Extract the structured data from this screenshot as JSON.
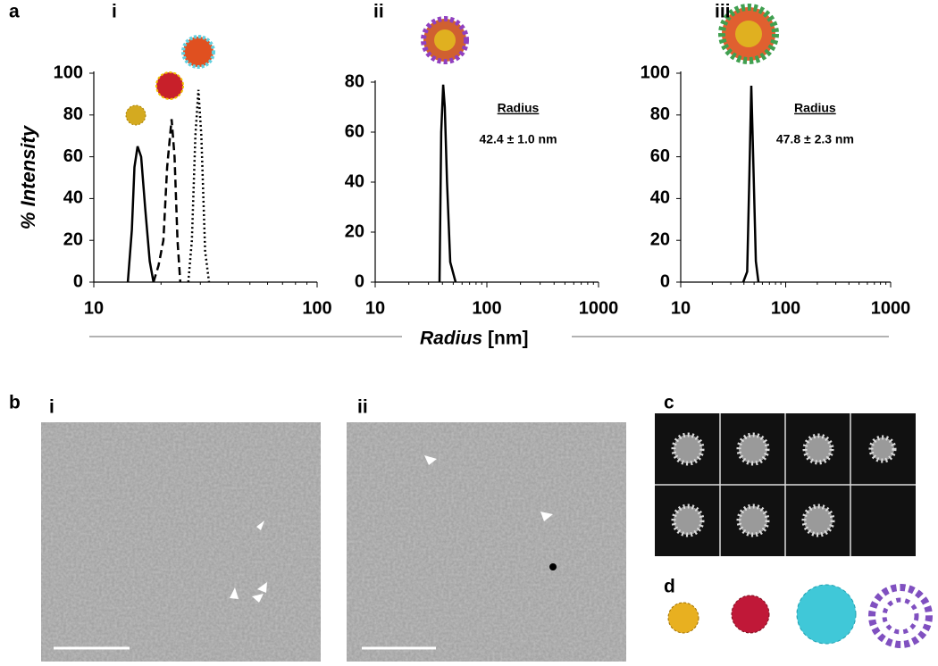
{
  "chart_data": [
    {
      "type": "line",
      "title": "i",
      "ylabel": "% Intensity",
      "xscale": "log",
      "xlim": [
        10,
        100
      ],
      "xticks": [
        10,
        100
      ],
      "ylim": [
        0,
        100
      ],
      "yticks": [
        0,
        20,
        40,
        60,
        80,
        100
      ],
      "series": [
        {
          "color": "#000000",
          "dash": "solid",
          "x": [
            14.2,
            14.8,
            15.2,
            15.7,
            16.3,
            17,
            17.8,
            18.5
          ],
          "values": [
            0,
            25,
            55,
            65,
            60,
            35,
            10,
            0
          ]
        },
        {
          "color": "#000000",
          "dash": "dashed",
          "x": [
            18.5,
            19.5,
            20.5,
            21.3,
            22.3,
            23,
            23.7,
            24.4
          ],
          "values": [
            0,
            8,
            20,
            55,
            78,
            60,
            20,
            0
          ]
        },
        {
          "color": "#000000",
          "dash": "dotted",
          "x": [
            26.5,
            27.5,
            28.5,
            29.4,
            30.3,
            31.5,
            32.8
          ],
          "values": [
            0,
            20,
            70,
            92,
            70,
            15,
            0
          ]
        }
      ]
    },
    {
      "type": "line",
      "title": "ii",
      "xscale": "log",
      "xlim": [
        10,
        1000
      ],
      "xticks": [
        10,
        100,
        1000
      ],
      "ylim": [
        0,
        80
      ],
      "yticks": [
        0,
        20,
        40,
        60,
        80
      ],
      "annotation": {
        "heading": "Radius",
        "text": "42.4 ± 1.0 nm"
      },
      "series": [
        {
          "color": "#000000",
          "dash": "solid",
          "x": [
            37.7,
            39,
            40.6,
            42,
            44,
            47,
            52.5
          ],
          "values": [
            0,
            60,
            79,
            70,
            40,
            8,
            0
          ]
        }
      ]
    },
    {
      "type": "line",
      "title": "iii",
      "xscale": "log",
      "xlim": [
        10,
        1000
      ],
      "xticks": [
        10,
        100,
        1000
      ],
      "ylim": [
        0,
        100
      ],
      "yticks": [
        0,
        20,
        40,
        60,
        80,
        100
      ],
      "annotation": {
        "heading": "Radius",
        "text": "47.8 ± 2.3 nm"
      },
      "series": [
        {
          "color": "#000000",
          "dash": "solid",
          "x": [
            39.4,
            43,
            45,
            47,
            49,
            52,
            55
          ],
          "values": [
            0,
            5,
            50,
            94,
            60,
            10,
            0
          ]
        }
      ]
    }
  ],
  "x_axis_title": {
    "name": "Radius",
    "unit": "[nm]"
  },
  "panel_labels": {
    "a": "a",
    "b": "b",
    "b_i": "i",
    "b_ii": "ii",
    "c": "c",
    "d": "d"
  }
}
